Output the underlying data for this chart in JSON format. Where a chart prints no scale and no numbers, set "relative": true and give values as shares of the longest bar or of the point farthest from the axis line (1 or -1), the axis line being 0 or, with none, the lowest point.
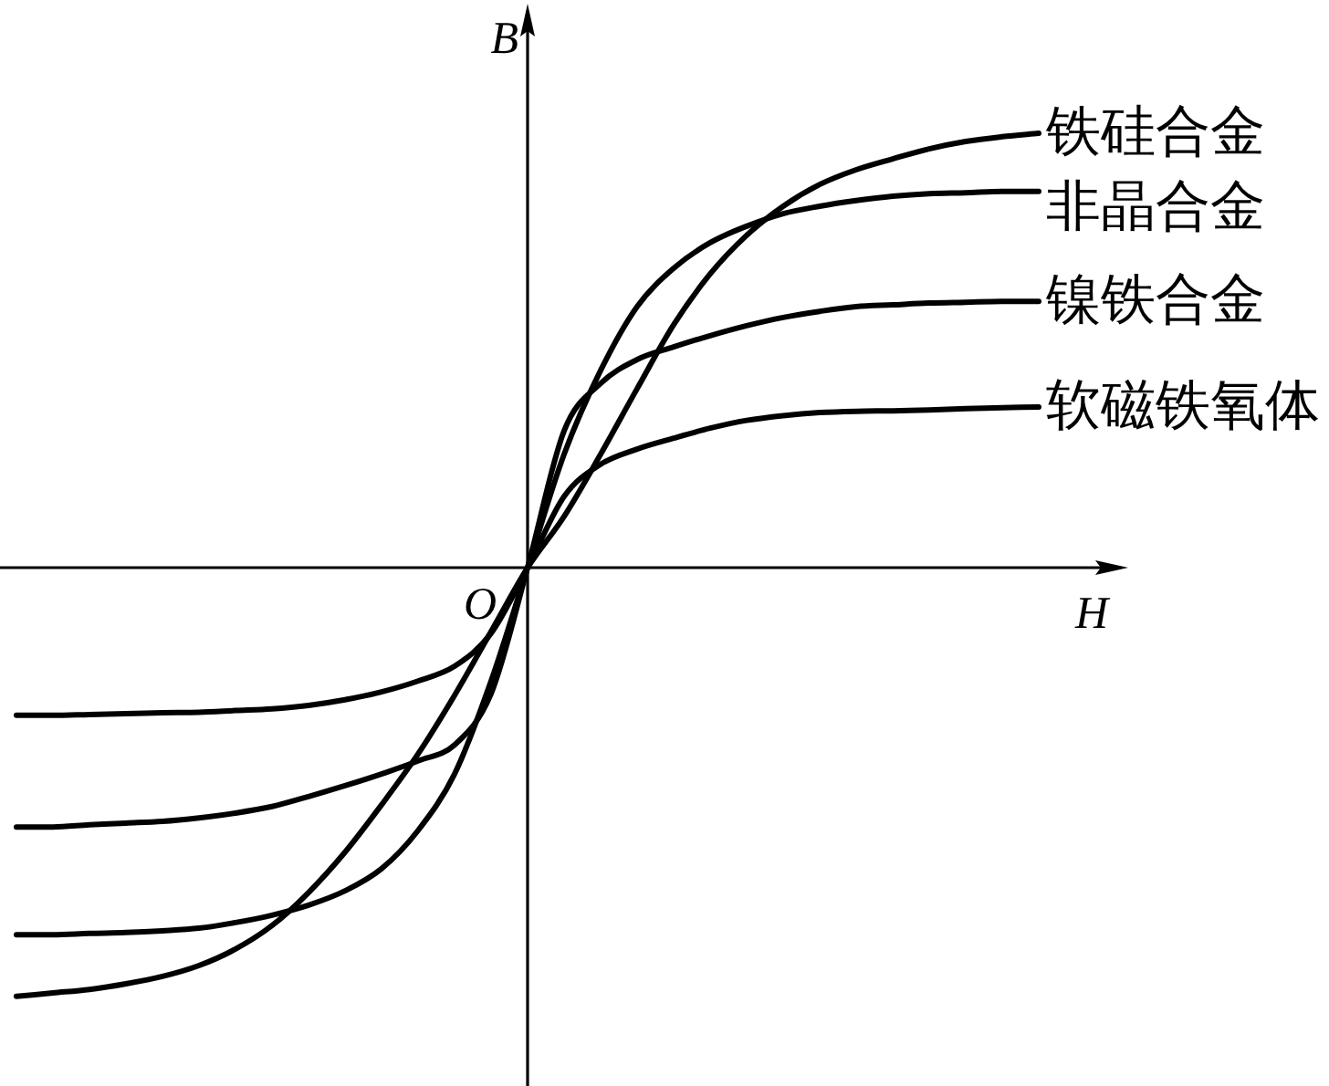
{
  "chart_data": {
    "type": "line",
    "relative": true,
    "xlabel": "H",
    "ylabel": "B",
    "annotations": [
      "O"
    ],
    "categories": [
      null,
      null,
      null,
      null,
      null,
      null,
      null,
      null,
      null,
      null,
      null,
      null,
      null,
      null,
      null,
      null,
      null,
      null,
      null,
      null,
      null,
      null,
      null,
      null,
      null,
      null,
      null,
      null,
      null
    ],
    "series": [
      {
        "name": "铁硅合金",
        "color": "#000000",
        "values": [
          -0.987,
          -0.979,
          -0.971,
          -0.958,
          -0.941,
          -0.916,
          -0.878,
          -0.824,
          -0.748,
          -0.655,
          -0.546,
          -0.429,
          -0.294,
          -0.147,
          0,
          0.118,
          0.261,
          0.412,
          0.559,
          0.676,
          0.765,
          0.832,
          0.882,
          0.916,
          0.941,
          0.964,
          0.981,
          0.992,
          1.0
        ]
      },
      {
        "name": "非晶合金",
        "color": "#000000",
        "values": [
          -0.845,
          -0.845,
          -0.842,
          -0.84,
          -0.836,
          -0.83,
          -0.817,
          -0.8,
          -0.777,
          -0.744,
          -0.693,
          -0.605,
          -0.475,
          -0.261,
          0,
          0.261,
          0.454,
          0.601,
          0.689,
          0.748,
          0.786,
          0.815,
          0.832,
          0.845,
          0.855,
          0.861,
          0.863,
          0.866,
          0.866
        ]
      },
      {
        "name": "镍铁合金",
        "color": "#000000",
        "values": [
          -0.597,
          -0.597,
          -0.592,
          -0.588,
          -0.584,
          -0.576,
          -0.565,
          -0.55,
          -0.527,
          -0.502,
          -0.475,
          -0.445,
          -0.408,
          -0.29,
          0,
          0.315,
          0.424,
          0.479,
          0.508,
          0.534,
          0.557,
          0.576,
          0.59,
          0.601,
          0.605,
          0.609,
          0.611,
          0.613,
          0.613
        ]
      },
      {
        "name": "软磁铁氧体",
        "color": "#000000",
        "values": [
          -0.34,
          -0.34,
          -0.338,
          -0.336,
          -0.334,
          -0.333,
          -0.329,
          -0.325,
          -0.317,
          -0.304,
          -0.286,
          -0.261,
          -0.227,
          -0.151,
          0,
          0.164,
          0.238,
          0.273,
          0.298,
          0.321,
          0.339,
          0.35,
          0.357,
          0.36,
          0.361,
          0.363,
          0.366,
          0.368,
          0.37
        ]
      }
    ]
  }
}
